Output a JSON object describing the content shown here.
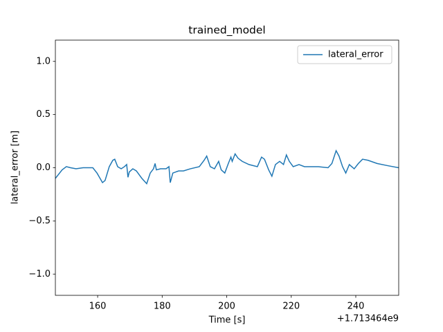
{
  "chart_data": {
    "type": "line",
    "title": "trained_model",
    "xlabel": "Time [s]",
    "ylabel": "lateral_error [m]",
    "x_offset_label": "+1.713464e9",
    "xlim": [
      146.9,
      253.3
    ],
    "xticks": [
      160,
      180,
      200,
      220,
      240
    ],
    "ylim": [
      -1.2,
      1.2
    ],
    "yticks": [
      {
        "value": -1.0,
        "label": "−1.0"
      },
      {
        "value": -0.5,
        "label": "−0.5"
      },
      {
        "value": 0.0,
        "label": "0.0"
      },
      {
        "value": 0.5,
        "label": "0.5"
      },
      {
        "value": 1.0,
        "label": "1.0"
      }
    ],
    "grid": false,
    "legend": "upper right",
    "x": [
      146.9,
      149.0,
      150.3,
      151.6,
      153.3,
      155.5,
      158.5,
      159.8,
      161.5,
      162.3,
      163.6,
      164.7,
      165.3,
      166.2,
      167.3,
      168.3,
      169.0,
      169.4,
      169.8,
      170.9,
      172.0,
      173.7,
      175.2,
      176.3,
      177.3,
      177.8,
      178.2,
      179.5,
      181.2,
      182.1,
      182.5,
      183.3,
      185.1,
      186.6,
      188.7,
      191.5,
      193.0,
      193.8,
      194.9,
      196.2,
      197.5,
      198.3,
      199.4,
      200.5,
      201.3,
      201.7,
      202.6,
      203.5,
      204.8,
      206.9,
      209.5,
      210.8,
      211.7,
      213.0,
      214.0,
      215.1,
      216.4,
      217.6,
      218.5,
      219.4,
      220.6,
      222.4,
      224.1,
      228.4,
      231.4,
      232.6,
      233.9,
      234.8,
      235.9,
      236.9,
      238.0,
      239.5,
      240.8,
      242.1,
      243.8,
      246.6,
      249.8,
      253.3
    ],
    "series": [
      {
        "name": "lateral_error",
        "color": "#1f77b4",
        "values": [
          -0.1,
          -0.02,
          0.01,
          0.0,
          -0.01,
          0.0,
          0.0,
          -0.05,
          -0.14,
          -0.12,
          0.01,
          0.07,
          0.08,
          0.01,
          -0.01,
          0.01,
          0.03,
          -0.09,
          -0.04,
          -0.01,
          -0.03,
          -0.1,
          -0.15,
          -0.05,
          -0.01,
          0.04,
          -0.02,
          -0.01,
          -0.01,
          0.01,
          -0.14,
          -0.05,
          -0.03,
          -0.03,
          -0.01,
          0.01,
          0.07,
          0.11,
          0.01,
          -0.01,
          0.06,
          -0.02,
          -0.05,
          0.04,
          0.1,
          0.06,
          0.13,
          0.09,
          0.06,
          0.03,
          0.01,
          0.1,
          0.08,
          -0.02,
          -0.08,
          0.03,
          0.06,
          0.03,
          0.12,
          0.06,
          0.01,
          0.03,
          0.01,
          0.01,
          0.0,
          0.04,
          0.16,
          0.11,
          0.01,
          -0.05,
          0.03,
          -0.01,
          0.04,
          0.08,
          0.07,
          0.04,
          0.02,
          0.0
        ]
      }
    ]
  }
}
